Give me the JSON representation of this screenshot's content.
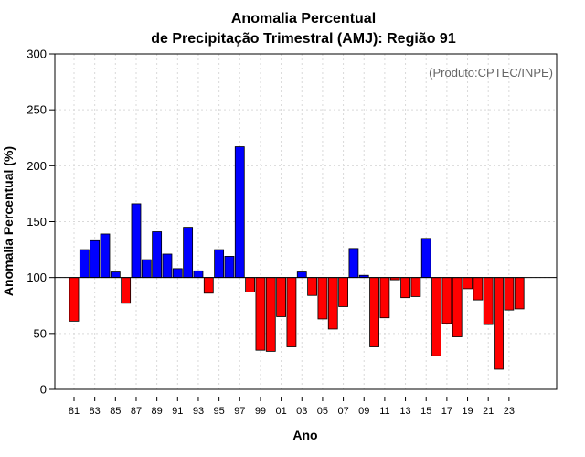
{
  "chart_data": {
    "type": "bar",
    "title_line1": "Anomalia Percentual",
    "title_line2": "de Precipitação Trimestral (AMJ): Região 91",
    "xlabel": "Ano",
    "ylabel": "Anomalia Percentual (%)",
    "credit": "(Produto:CPTEC/INPE)",
    "baseline": 100,
    "ylim": [
      0,
      300
    ],
    "yticks": [
      0,
      50,
      100,
      150,
      200,
      250,
      300
    ],
    "ytick_labels": [
      "0",
      "50",
      "100",
      "150",
      "200",
      "250",
      "300"
    ],
    "grid": true,
    "colors": {
      "above": "#0000ff",
      "below": "#ff0000"
    },
    "categories": [
      "81",
      "82",
      "83",
      "84",
      "85",
      "86",
      "87",
      "88",
      "89",
      "90",
      "91",
      "92",
      "93",
      "94",
      "95",
      "96",
      "97",
      "98",
      "99",
      "00",
      "01",
      "02",
      "03",
      "04",
      "05",
      "06",
      "07",
      "08",
      "09",
      "10",
      "11",
      "12",
      "13",
      "14",
      "15",
      "16",
      "17",
      "18",
      "19",
      "20",
      "21",
      "22",
      "23",
      "24"
    ],
    "xtick_labels": [
      "81",
      "83",
      "85",
      "87",
      "89",
      "91",
      "93",
      "95",
      "97",
      "99",
      "01",
      "03",
      "05",
      "07",
      "09",
      "11",
      "13",
      "15",
      "17",
      "19",
      "21",
      "23"
    ],
    "values": [
      61,
      125,
      133,
      139,
      105,
      77,
      166,
      116,
      141,
      121,
      108,
      145,
      106,
      86,
      125,
      119,
      217,
      87,
      35,
      34,
      65,
      38,
      105,
      84,
      63,
      54,
      74,
      126,
      102,
      38,
      64,
      98,
      82,
      83,
      135,
      30,
      59,
      47,
      90,
      80,
      58,
      18,
      71,
      72
    ]
  }
}
